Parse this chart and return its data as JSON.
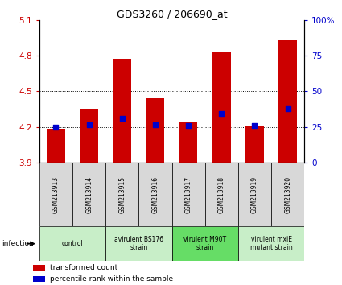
{
  "title": "GDS3260 / 206690_at",
  "samples": [
    "GSM213913",
    "GSM213914",
    "GSM213915",
    "GSM213916",
    "GSM213917",
    "GSM213918",
    "GSM213919",
    "GSM213920"
  ],
  "bar_values": [
    4.18,
    4.35,
    4.77,
    4.44,
    4.24,
    4.83,
    4.21,
    4.93
  ],
  "dot_values": [
    4.2,
    4.22,
    4.27,
    4.22,
    4.21,
    4.31,
    4.21,
    4.35
  ],
  "ylim_left": [
    3.9,
    5.1
  ],
  "ylim_right": [
    0,
    100
  ],
  "yticks_left": [
    3.9,
    4.2,
    4.5,
    4.8,
    5.1
  ],
  "yticks_right": [
    0,
    25,
    50,
    75,
    100
  ],
  "ytick_labels_left": [
    "3.9",
    "4.2",
    "4.5",
    "4.8",
    "5.1"
  ],
  "ytick_labels_right": [
    "0",
    "25",
    "50",
    "75",
    "100%"
  ],
  "bar_color": "#cc0000",
  "dot_color": "#0000cc",
  "bar_width": 0.55,
  "group_boundaries": [
    {
      "start": 0,
      "end": 1,
      "label": "control",
      "color": "#c8eec8"
    },
    {
      "start": 2,
      "end": 3,
      "label": "avirulent BS176\nstrain",
      "color": "#c8eec8"
    },
    {
      "start": 4,
      "end": 5,
      "label": "virulent M90T\nstrain",
      "color": "#66dd66"
    },
    {
      "start": 6,
      "end": 7,
      "label": "virulent mxiE\nmutant strain",
      "color": "#c8eec8"
    }
  ],
  "infection_label": "infection",
  "legend_items": [
    {
      "color": "#cc0000",
      "label": "transformed count"
    },
    {
      "color": "#0000cc",
      "label": "percentile rank within the sample"
    }
  ],
  "box_bg": "#d8d8d8",
  "gridlines": [
    4.2,
    4.5,
    4.8
  ]
}
